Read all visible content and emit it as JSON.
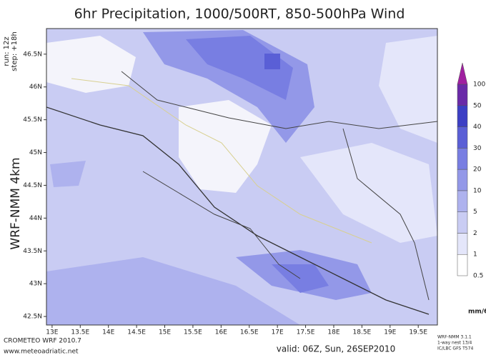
{
  "title": "6hr Precipitation, 1000/500RT, 850-500hPa Wind",
  "side": {
    "model": "WRF-NMM 4km",
    "run": "run: 12z",
    "step": "step: +18h"
  },
  "map": {
    "lat_range": [
      42.37,
      46.89
    ],
    "lon_range": [
      12.9,
      19.84
    ],
    "lat_ticks": [
      {
        "value": 42.5,
        "label": "42.5N"
      },
      {
        "value": 43,
        "label": "43N"
      },
      {
        "value": 43.5,
        "label": "43.5N"
      },
      {
        "value": 44,
        "label": "44N"
      },
      {
        "value": 44.5,
        "label": "44.5N"
      },
      {
        "value": 45,
        "label": "45N"
      },
      {
        "value": 45.5,
        "label": "45.5N"
      },
      {
        "value": 46,
        "label": "46N"
      },
      {
        "value": 46.5,
        "label": "46.5N"
      }
    ],
    "lon_ticks": [
      {
        "value": 13,
        "label": "13E"
      },
      {
        "value": 13.5,
        "label": "13.5E"
      },
      {
        "value": 14,
        "label": "14E"
      },
      {
        "value": 14.5,
        "label": "14.5E"
      },
      {
        "value": 15,
        "label": "15E"
      },
      {
        "value": 15.5,
        "label": "15.5E"
      },
      {
        "value": 16,
        "label": "16E"
      },
      {
        "value": 16.5,
        "label": "16.5E"
      },
      {
        "value": 17,
        "label": "17E"
      },
      {
        "value": 17.5,
        "label": "17.5E"
      },
      {
        "value": 18,
        "label": "18E"
      },
      {
        "value": 18.5,
        "label": "18.5E"
      },
      {
        "value": 19,
        "label": "19E"
      },
      {
        "value": 19.5,
        "label": "19.5E"
      }
    ]
  },
  "colorbar": {
    "unit": "mm/6h",
    "levels": [
      0.5,
      1,
      2,
      5,
      10,
      20,
      30,
      40,
      50,
      100
    ],
    "colors": [
      "#ffffff",
      "#e4e6fa",
      "#c9ccf3",
      "#aeb2ee",
      "#9398e8",
      "#787ee2",
      "#5a5fd6",
      "#3c3fc4",
      "#6a2aa8",
      "#a020a0"
    ]
  },
  "footer": {
    "left1": "CROMETEO WRF 2010.7",
    "left2": "www.meteoadriatic.net",
    "valid": "valid: 06Z, Sun, 26SEP2010",
    "right1": "WRF-NMM 3.1.1",
    "right2": "1-way nest 13/4",
    "right3": "IC/LBC GFS T574"
  }
}
